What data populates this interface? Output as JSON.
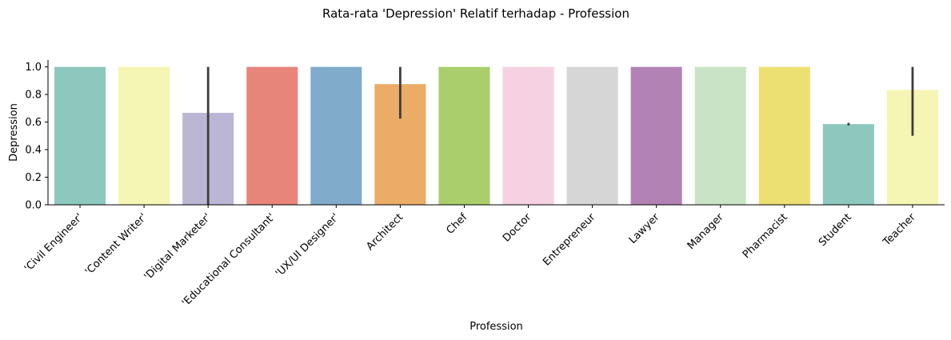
{
  "chart_data": {
    "type": "bar",
    "title": "Rata-rata 'Depression' Relatif terhadap - Profession",
    "xlabel": "Profession",
    "ylabel": "Depression",
    "ylim": [
      0,
      1.05
    ],
    "yticks": [
      "0.0",
      "0.2",
      "0.4",
      "0.6",
      "0.8",
      "1.0"
    ],
    "grid": false,
    "categories": [
      "'Civil Engineer'",
      "'Content Writer'",
      "'Digital Marketer'",
      "'Educational Consultant'",
      "'UX/UI Designer'",
      "Architect",
      "Chef",
      "Doctor",
      "Entrepreneur",
      "Lawyer",
      "Manager",
      "Pharmacist",
      "Student",
      "Teacher"
    ],
    "values": [
      1.0,
      1.0,
      0.667,
      1.0,
      1.0,
      0.875,
      1.0,
      1.0,
      1.0,
      1.0,
      1.0,
      1.0,
      0.585,
      0.833
    ],
    "error_bars": [
      null,
      null,
      [
        0.0,
        1.0
      ],
      null,
      null,
      [
        0.625,
        1.0
      ],
      null,
      null,
      null,
      null,
      null,
      null,
      [
        0.576,
        0.594
      ],
      [
        0.5,
        1.0
      ]
    ],
    "colors": [
      "#8dc7bd",
      "#f5f5b4",
      "#bbb6d4",
      "#e8857b",
      "#80abca",
      "#eaac66",
      "#a9ce6b",
      "#f5d1e2",
      "#d6d6d6",
      "#b282b4",
      "#c9e4c4",
      "#ece072",
      "#8dc7bd",
      "#f5f5b4"
    ]
  }
}
